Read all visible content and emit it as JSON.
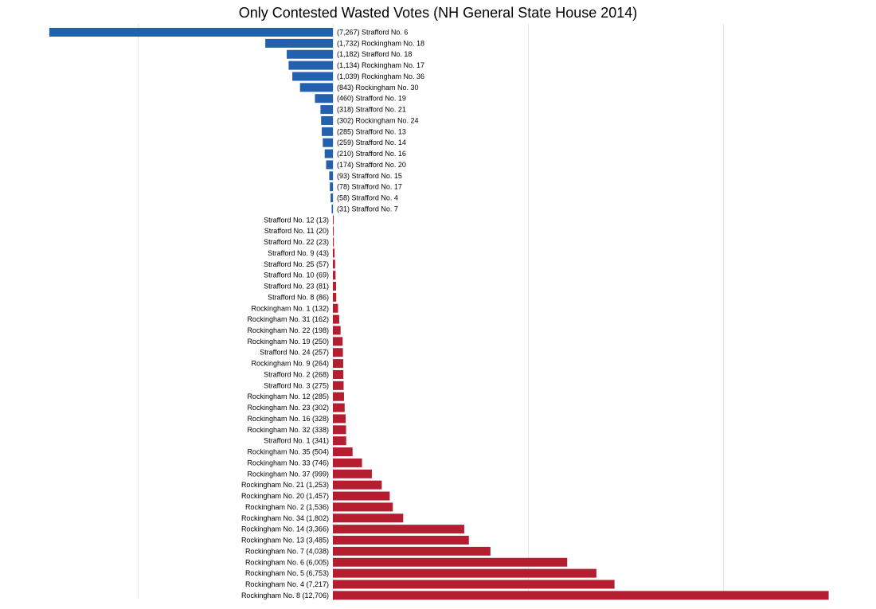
{
  "chart_data": {
    "type": "bar",
    "orientation": "horizontal",
    "title": "Only Contested Wasted Votes (NH General State House 2014)",
    "xlabel": "",
    "ylabel": "",
    "grid": true,
    "colors": {
      "negative": "#2361AE",
      "positive": "#B51D31",
      "grid": "#E6E6E6"
    },
    "series": [
      {
        "side": "negative",
        "bars": [
          {
            "district": "Strafford No. 6",
            "value": -7267,
            "label": "(7,267) Strafford No. 6"
          },
          {
            "district": "Rockingham No. 18",
            "value": -1732,
            "label": "(1,732) Rockingham No. 18"
          },
          {
            "district": "Strafford No. 18",
            "value": -1182,
            "label": "(1,182) Strafford No. 18"
          },
          {
            "district": "Rockingham No. 17",
            "value": -1134,
            "label": "(1,134) Rockingham No. 17"
          },
          {
            "district": "Rockingham No. 36",
            "value": -1039,
            "label": "(1,039) Rockingham No. 36"
          },
          {
            "district": "Rockingham No. 30",
            "value": -843,
            "label": "(843) Rockingham No. 30"
          },
          {
            "district": "Strafford No. 19",
            "value": -460,
            "label": "(460) Strafford No. 19"
          },
          {
            "district": "Strafford No. 21",
            "value": -318,
            "label": "(318) Strafford No. 21"
          },
          {
            "district": "Rockingham No. 24",
            "value": -302,
            "label": "(302) Rockingham No. 24"
          },
          {
            "district": "Strafford No. 13",
            "value": -285,
            "label": "(285) Strafford No. 13"
          },
          {
            "district": "Strafford No. 14",
            "value": -259,
            "label": "(259) Strafford No. 14"
          },
          {
            "district": "Strafford No. 16",
            "value": -210,
            "label": "(210) Strafford No. 16"
          },
          {
            "district": "Strafford No. 20",
            "value": -174,
            "label": "(174) Strafford No. 20"
          },
          {
            "district": "Strafford No. 15",
            "value": -93,
            "label": "(93) Strafford No. 15"
          },
          {
            "district": "Strafford No. 17",
            "value": -78,
            "label": "(78) Strafford No. 17"
          },
          {
            "district": "Strafford No. 4",
            "value": -58,
            "label": "(58) Strafford No. 4"
          },
          {
            "district": "Strafford No. 7",
            "value": -31,
            "label": "(31) Strafford No. 7"
          }
        ]
      },
      {
        "side": "positive",
        "bars": [
          {
            "district": "Strafford No. 12",
            "value": 13,
            "label": "Strafford No. 12 (13)"
          },
          {
            "district": "Strafford No. 11",
            "value": 20,
            "label": "Strafford No. 11 (20)"
          },
          {
            "district": "Strafford No. 22",
            "value": 23,
            "label": "Strafford No. 22 (23)"
          },
          {
            "district": "Strafford No. 9",
            "value": 43,
            "label": "Strafford No. 9 (43)"
          },
          {
            "district": "Strafford No. 25",
            "value": 57,
            "label": "Strafford No. 25 (57)"
          },
          {
            "district": "Strafford No. 10",
            "value": 69,
            "label": "Strafford No. 10 (69)"
          },
          {
            "district": "Strafford No. 23",
            "value": 81,
            "label": "Strafford No. 23 (81)"
          },
          {
            "district": "Strafford No. 8",
            "value": 86,
            "label": "Strafford No. 8 (86)"
          },
          {
            "district": "Rockingham No. 1",
            "value": 132,
            "label": "Rockingham No. 1 (132)"
          },
          {
            "district": "Rockingham No. 31",
            "value": 162,
            "label": "Rockingham No. 31 (162)"
          },
          {
            "district": "Rockingham No. 22",
            "value": 198,
            "label": "Rockingham No. 22 (198)"
          },
          {
            "district": "Rockingham No. 19",
            "value": 250,
            "label": "Rockingham No. 19 (250)"
          },
          {
            "district": "Strafford No. 24",
            "value": 257,
            "label": "Strafford No. 24 (257)"
          },
          {
            "district": "Rockingham No. 9",
            "value": 264,
            "label": "Rockingham No. 9 (264)"
          },
          {
            "district": "Strafford No. 2",
            "value": 268,
            "label": "Strafford No. 2 (268)"
          },
          {
            "district": "Strafford No. 3",
            "value": 275,
            "label": "Strafford No. 3 (275)"
          },
          {
            "district": "Rockingham No. 12",
            "value": 285,
            "label": "Rockingham No. 12 (285)"
          },
          {
            "district": "Rockingham No. 23",
            "value": 302,
            "label": "Rockingham No. 23 (302)"
          },
          {
            "district": "Rockingham No. 16",
            "value": 328,
            "label": "Rockingham No. 16 (328)"
          },
          {
            "district": "Rockingham No. 32",
            "value": 338,
            "label": "Rockingham No. 32 (338)"
          },
          {
            "district": "Strafford No. 1",
            "value": 341,
            "label": "Strafford No. 1 (341)"
          },
          {
            "district": "Rockingham No. 35",
            "value": 504,
            "label": "Rockingham No. 35 (504)"
          },
          {
            "district": "Rockingham No. 33",
            "value": 746,
            "label": "Rockingham No. 33 (746)"
          },
          {
            "district": "Rockingham No. 37",
            "value": 999,
            "label": "Rockingham No. 37 (999)"
          },
          {
            "district": "Rockingham No. 21",
            "value": 1253,
            "label": "Rockingham No. 21 (1,253)"
          },
          {
            "district": "Rockingham No. 20",
            "value": 1457,
            "label": "Rockingham No. 20 (1,457)"
          },
          {
            "district": "Rockingham No. 2",
            "value": 1536,
            "label": "Rockingham No. 2 (1,536)"
          },
          {
            "district": "Rockingham No. 34",
            "value": 1802,
            "label": "Rockingham No. 34 (1,802)"
          },
          {
            "district": "Rockingham No. 14",
            "value": 3366,
            "label": "Rockingham No. 14 (3,366)"
          },
          {
            "district": "Rockingham No. 13",
            "value": 3485,
            "label": "Rockingham No. 13 (3,485)"
          },
          {
            "district": "Rockingham No. 7",
            "value": 4038,
            "label": "Rockingham No. 7 (4,038)"
          },
          {
            "district": "Rockingham No. 6",
            "value": 6005,
            "label": "Rockingham No. 6 (6,005)"
          },
          {
            "district": "Rockingham No. 5",
            "value": 6753,
            "label": "Rockingham No. 5 (6,753)"
          },
          {
            "district": "Rockingham No. 4",
            "value": 7217,
            "label": "Rockingham No. 4 (7,217)"
          },
          {
            "district": "Rockingham No. 8",
            "value": 12706,
            "label": "Rockingham No. 8 (12,706)"
          }
        ]
      }
    ],
    "xlim": [
      -7500,
      13000
    ],
    "gridlines_x": [
      -5000,
      0,
      5000,
      10000
    ]
  }
}
